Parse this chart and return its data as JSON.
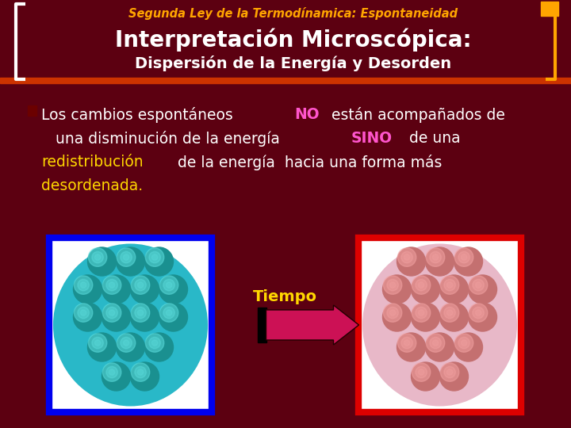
{
  "bg_color": "#5C0011",
  "title_subtitle": "Segunda Ley de la Termodínamica: Espontaneidad",
  "title_subtitle_color": "#FFA500",
  "title_main": "Interpretación Microscópica:",
  "title_main2": "Dispersión de la Energía y Desorden",
  "title_main_color": "#FFFFFF",
  "bracket_color": "#FFA500",
  "separator_color": "#CC3300",
  "tiempo_label": "Tiempo",
  "tiempo_color": "#FFD700",
  "left_image_border": "#0000EE",
  "right_image_border": "#DD0000",
  "teal_bg": "#29B8C8",
  "teal_ball": "#1A9090",
  "teal_highlight": "#5ADADA",
  "pink_bg": "#E8B8C8",
  "salmon_ball": "#C47070",
  "salmon_highlight": "#F0A0A0",
  "arrow_color_left": "#4488FF",
  "arrow_color_right": "#8888CC",
  "arrow_body": "#CC1155",
  "arrow_edge": "#220000"
}
